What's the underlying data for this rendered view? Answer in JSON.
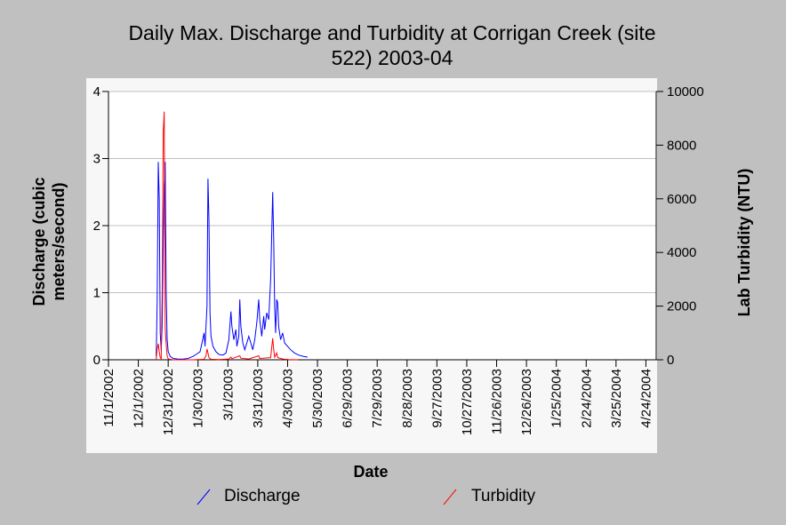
{
  "colors": {
    "background": "#c0c0c0",
    "plot_background": "#ffffff",
    "grid": "#c0c0c0",
    "discharge": "#0000ff",
    "turbidity": "#ff0000"
  },
  "chart_data": {
    "type": "line",
    "title_line1": "Daily Max. Discharge and Turbidity at Corrigan Creek (site",
    "title_line2": "522) 2003-04",
    "xlabel": "Date",
    "ylabel_left_line1": "Discharge (cubic",
    "ylabel_left_line2": "meters/second)",
    "ylabel_right": "Lab Turbidity (NTU)",
    "x_range": [
      "2002-11-01",
      "2004-05-24"
    ],
    "x_ticks": [
      "11/1/2002",
      "12/1/2002",
      "12/31/2002",
      "1/30/2003",
      "3/1/2003",
      "3/31/2003",
      "4/30/2003",
      "5/30/2003",
      "6/29/2003",
      "7/29/2003",
      "8/28/2003",
      "9/27/2003",
      "10/27/2003",
      "11/26/2003",
      "12/26/2003",
      "1/25/2004",
      "2/24/2004",
      "3/25/2004",
      "4/24/2004"
    ],
    "y_left_range": [
      0,
      4
    ],
    "y_left_ticks": [
      "0",
      "1",
      "2",
      "3",
      "4"
    ],
    "y_right_range": [
      0,
      10000
    ],
    "y_right_ticks": [
      "0",
      "2000",
      "4000",
      "6000",
      "8000",
      "10000"
    ],
    "grid": true,
    "legend_position": "bottom",
    "series": [
      {
        "name": "Discharge",
        "axis": "left",
        "points": [
          [
            "2002-12-19",
            0.05
          ],
          [
            "2002-12-20",
            0.9
          ],
          [
            "2002-12-21",
            2.95
          ],
          [
            "2002-12-22",
            2.4
          ],
          [
            "2002-12-23",
            0.4
          ],
          [
            "2002-12-24",
            0.15
          ],
          [
            "2002-12-25",
            0.5
          ],
          [
            "2002-12-26",
            1.7
          ],
          [
            "2002-12-27",
            2.6
          ],
          [
            "2002-12-28",
            2.95
          ],
          [
            "2002-12-29",
            1.0
          ],
          [
            "2002-12-30",
            0.3
          ],
          [
            "2002-12-31",
            0.12
          ],
          [
            "2003-01-02",
            0.05
          ],
          [
            "2003-01-05",
            0.02
          ],
          [
            "2003-01-10",
            0.01
          ],
          [
            "2003-01-15",
            0.01
          ],
          [
            "2003-01-20",
            0.02
          ],
          [
            "2003-01-25",
            0.05
          ],
          [
            "2003-01-28",
            0.08
          ],
          [
            "2003-02-01",
            0.12
          ],
          [
            "2003-02-03",
            0.25
          ],
          [
            "2003-02-05",
            0.4
          ],
          [
            "2003-02-06",
            0.2
          ],
          [
            "2003-02-08",
            0.8
          ],
          [
            "2003-02-09",
            2.7
          ],
          [
            "2003-02-10",
            2.1
          ],
          [
            "2003-02-11",
            0.7
          ],
          [
            "2003-02-12",
            0.35
          ],
          [
            "2003-02-14",
            0.2
          ],
          [
            "2003-02-17",
            0.12
          ],
          [
            "2003-02-20",
            0.08
          ],
          [
            "2003-02-24",
            0.07
          ],
          [
            "2003-02-27",
            0.1
          ],
          [
            "2003-03-02",
            0.3
          ],
          [
            "2003-03-04",
            0.72
          ],
          [
            "2003-03-05",
            0.5
          ],
          [
            "2003-03-07",
            0.3
          ],
          [
            "2003-03-09",
            0.45
          ],
          [
            "2003-03-10",
            0.2
          ],
          [
            "2003-03-12",
            0.35
          ],
          [
            "2003-03-13",
            0.9
          ],
          [
            "2003-03-14",
            0.5
          ],
          [
            "2003-03-16",
            0.25
          ],
          [
            "2003-03-18",
            0.15
          ],
          [
            "2003-03-20",
            0.25
          ],
          [
            "2003-03-22",
            0.35
          ],
          [
            "2003-03-24",
            0.25
          ],
          [
            "2003-03-26",
            0.15
          ],
          [
            "2003-03-28",
            0.3
          ],
          [
            "2003-03-30",
            0.55
          ],
          [
            "2003-04-01",
            0.9
          ],
          [
            "2003-04-02",
            0.6
          ],
          [
            "2003-04-04",
            0.35
          ],
          [
            "2003-04-06",
            0.65
          ],
          [
            "2003-04-07",
            0.45
          ],
          [
            "2003-04-09",
            0.7
          ],
          [
            "2003-04-11",
            0.6
          ],
          [
            "2003-04-13",
            1.2
          ],
          [
            "2003-04-15",
            2.5
          ],
          [
            "2003-04-16",
            1.8
          ],
          [
            "2003-04-17",
            0.8
          ],
          [
            "2003-04-18",
            0.4
          ],
          [
            "2003-04-19",
            0.9
          ],
          [
            "2003-04-20",
            0.85
          ],
          [
            "2003-04-21",
            0.5
          ],
          [
            "2003-04-23",
            0.3
          ],
          [
            "2003-04-25",
            0.4
          ],
          [
            "2003-04-27",
            0.25
          ],
          [
            "2003-04-30",
            0.2
          ],
          [
            "2003-05-03",
            0.15
          ],
          [
            "2003-05-07",
            0.1
          ],
          [
            "2003-05-11",
            0.07
          ],
          [
            "2003-05-16",
            0.05
          ],
          [
            "2003-05-20",
            0.04
          ]
        ]
      },
      {
        "name": "Turbidity",
        "axis": "right",
        "points": [
          [
            "2002-12-19",
            0
          ],
          [
            "2002-12-20",
            400
          ],
          [
            "2002-12-21",
            600
          ],
          [
            "2002-12-22",
            300
          ],
          [
            "2002-12-23",
            80
          ],
          [
            "2002-12-24",
            40
          ],
          [
            "2002-12-25",
            2500
          ],
          [
            "2002-12-26",
            8500
          ],
          [
            "2002-12-27",
            9250
          ],
          [
            "2002-12-28",
            1200
          ],
          [
            "2002-12-29",
            600
          ],
          [
            "2002-12-30",
            150
          ],
          [
            "2002-12-31",
            30
          ],
          [
            "2003-01-05",
            0
          ],
          [
            "2003-01-25",
            0
          ],
          [
            "2003-01-30",
            10
          ],
          [
            "2003-02-05",
            20
          ],
          [
            "2003-02-07",
            150
          ],
          [
            "2003-02-08",
            400
          ],
          [
            "2003-02-09",
            250
          ],
          [
            "2003-02-10",
            80
          ],
          [
            "2003-02-12",
            20
          ],
          [
            "2003-02-20",
            5
          ],
          [
            "2003-03-02",
            30
          ],
          [
            "2003-03-04",
            100
          ],
          [
            "2003-03-05",
            40
          ],
          [
            "2003-03-13",
            150
          ],
          [
            "2003-03-14",
            60
          ],
          [
            "2003-03-22",
            30
          ],
          [
            "2003-04-01",
            150
          ],
          [
            "2003-04-02",
            50
          ],
          [
            "2003-04-13",
            80
          ],
          [
            "2003-04-15",
            800
          ],
          [
            "2003-04-16",
            400
          ],
          [
            "2003-04-17",
            100
          ],
          [
            "2003-04-19",
            250
          ],
          [
            "2003-04-20",
            80
          ],
          [
            "2003-04-25",
            30
          ],
          [
            "2003-05-01",
            10
          ],
          [
            "2003-05-10",
            0
          ]
        ]
      }
    ]
  }
}
